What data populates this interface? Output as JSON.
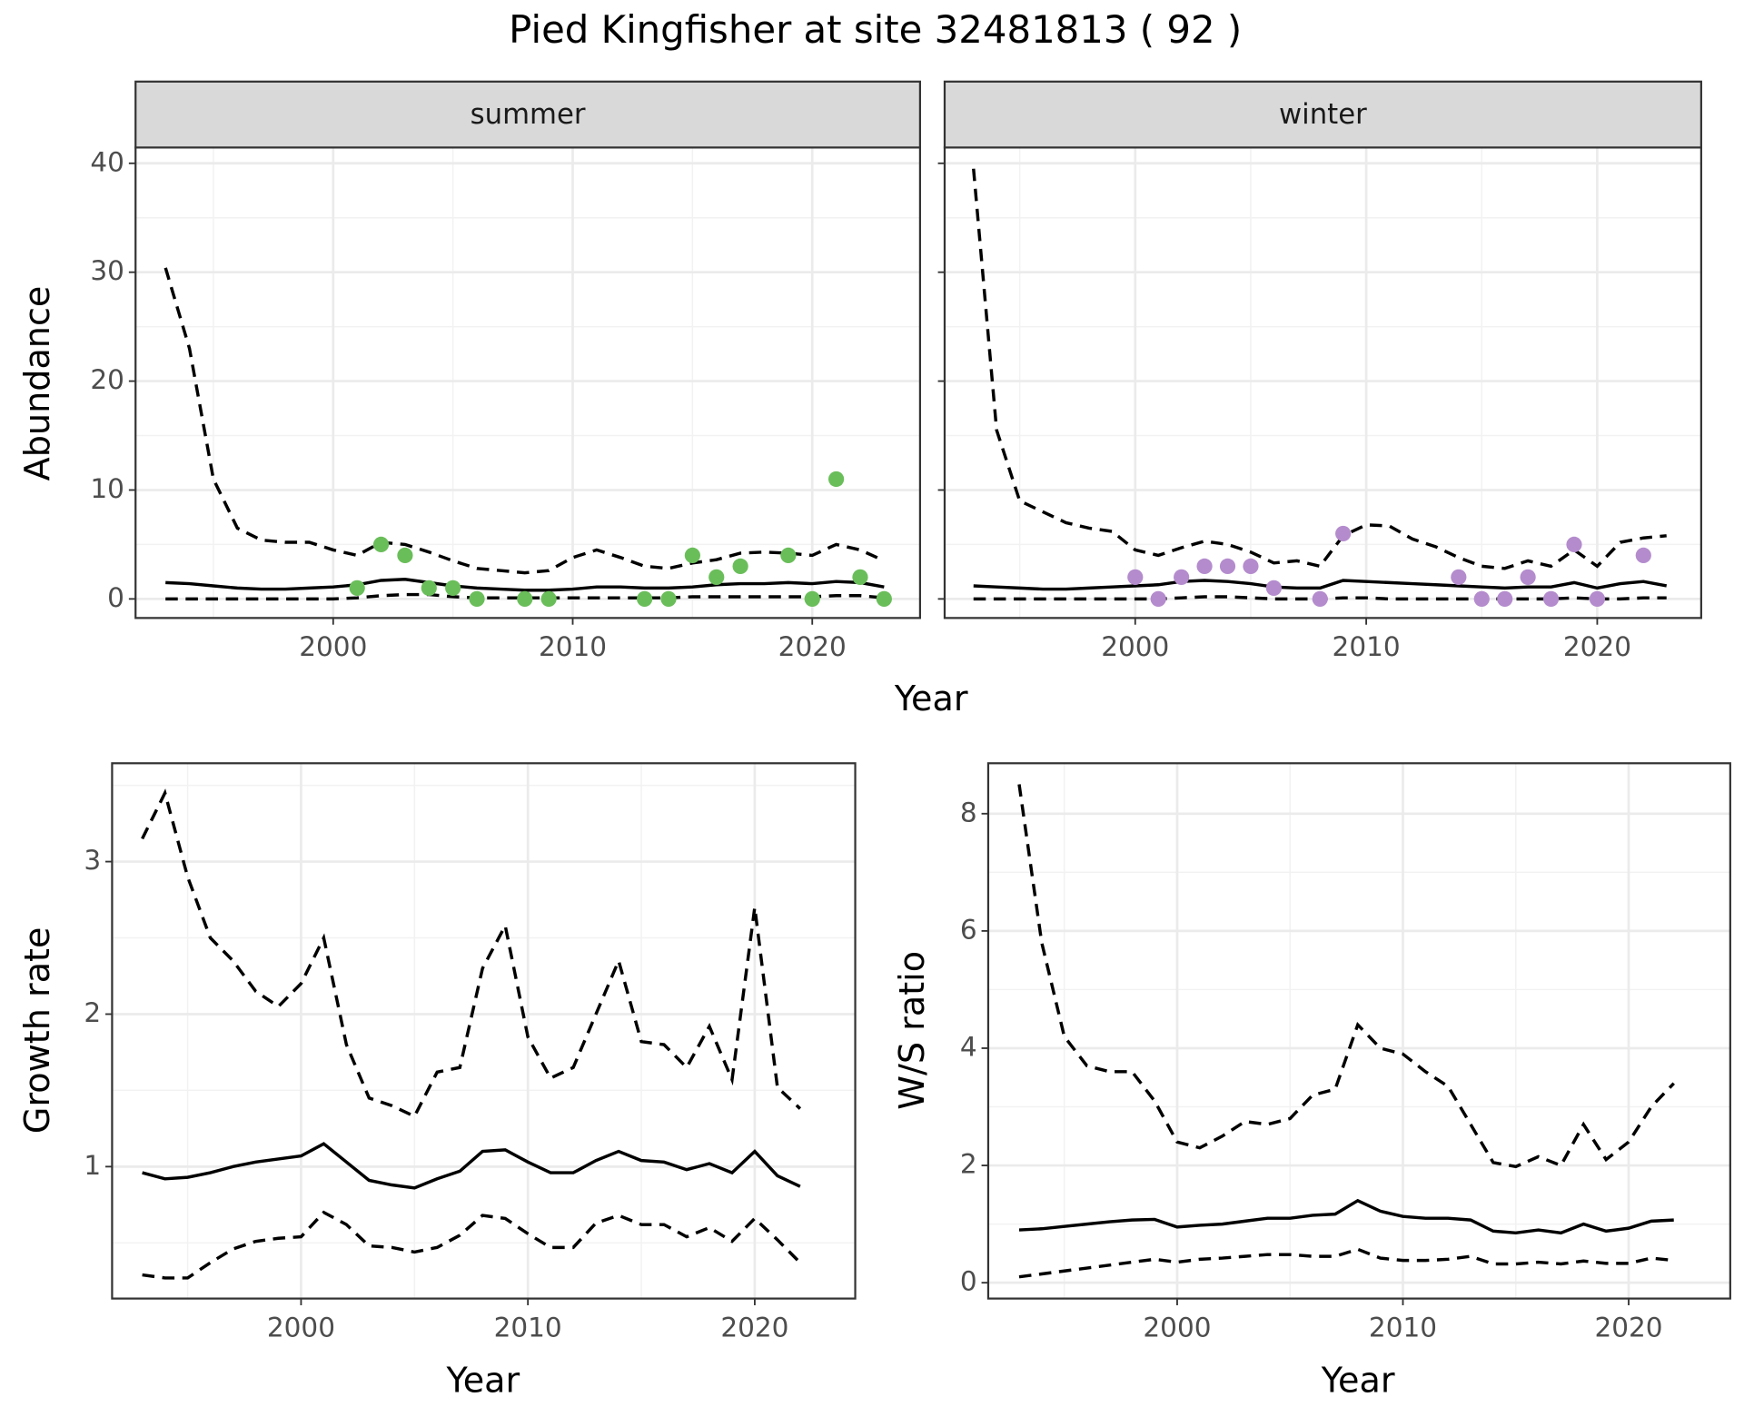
{
  "title": "Pied Kingfisher at site 32481813 ( 92 )",
  "chart_data": [
    {
      "type": "line",
      "strip": "summer",
      "ylabel": "Abundance",
      "xlabel": "Year",
      "xlim": [
        1991.75,
        2024.5
      ],
      "ylim": [
        -1.75,
        41.45
      ],
      "xticks": [
        2000,
        2010,
        2020
      ],
      "yticks": [
        0,
        10,
        20,
        30,
        40
      ],
      "grid": true,
      "x": [
        1993,
        1994,
        1995,
        1996,
        1997,
        1998,
        1999,
        2000,
        2001,
        2002,
        2003,
        2004,
        2005,
        2006,
        2007,
        2008,
        2009,
        2010,
        2011,
        2012,
        2013,
        2014,
        2015,
        2016,
        2017,
        2018,
        2019,
        2020,
        2021,
        2022,
        2023
      ],
      "series": [
        {
          "color": "#000000",
          "dash": false,
          "values": [
            1.5,
            1.4,
            1.2,
            1.0,
            0.9,
            0.9,
            1.0,
            1.1,
            1.3,
            1.7,
            1.8,
            1.5,
            1.2,
            1.0,
            0.9,
            0.8,
            0.8,
            0.9,
            1.1,
            1.1,
            1.0,
            1.0,
            1.1,
            1.3,
            1.4,
            1.4,
            1.5,
            1.4,
            1.6,
            1.5,
            1.1
          ]
        },
        {
          "color": "#000000",
          "dash": true,
          "values": [
            30.4,
            23,
            11,
            6.5,
            5.4,
            5.2,
            5.2,
            4.5,
            4.0,
            5.2,
            5.0,
            4.3,
            3.5,
            2.8,
            2.6,
            2.4,
            2.6,
            3.8,
            4.5,
            3.8,
            3.0,
            2.8,
            3.3,
            3.6,
            4.2,
            4.3,
            4.2,
            4.0,
            5.0,
            4.5,
            3.5
          ]
        },
        {
          "color": "#000000",
          "dash": true,
          "values": [
            0,
            0,
            0,
            0,
            0,
            0,
            0,
            0,
            0.1,
            0.3,
            0.4,
            0.4,
            0.2,
            0.1,
            0.1,
            0.1,
            0.1,
            0.1,
            0.1,
            0.1,
            0.1,
            0.1,
            0.2,
            0.2,
            0.2,
            0.2,
            0.2,
            0.2,
            0.3,
            0.3,
            0.1
          ]
        }
      ],
      "points": {
        "color": "#6abe5a",
        "x": [
          2001,
          2002,
          2003,
          2004,
          2005,
          2006,
          2008,
          2009,
          2013,
          2014,
          2015,
          2016,
          2017,
          2019,
          2020,
          2021,
          2022,
          2023
        ],
        "values": [
          1,
          5,
          4,
          1,
          1,
          0,
          0,
          0,
          0,
          0,
          4,
          2,
          3,
          4,
          0,
          11,
          2,
          0
        ]
      }
    },
    {
      "type": "line",
      "strip": "winter",
      "xlim": [
        1991.75,
        2024.5
      ],
      "ylim": [
        -1.75,
        41.45
      ],
      "xticks": [
        2000,
        2010,
        2020
      ],
      "yticks": [
        0,
        10,
        20,
        30,
        40
      ],
      "grid": true,
      "x": [
        1993,
        1994,
        1995,
        1996,
        1997,
        1998,
        1999,
        2000,
        2001,
        2002,
        2003,
        2004,
        2005,
        2006,
        2007,
        2008,
        2009,
        2010,
        2011,
        2012,
        2013,
        2014,
        2015,
        2016,
        2017,
        2018,
        2019,
        2020,
        2021,
        2022,
        2023
      ],
      "series": [
        {
          "color": "#000000",
          "dash": false,
          "values": [
            1.2,
            1.1,
            1.0,
            0.9,
            0.9,
            1.0,
            1.1,
            1.2,
            1.3,
            1.6,
            1.7,
            1.6,
            1.4,
            1.1,
            1.0,
            1.0,
            1.7,
            1.6,
            1.5,
            1.4,
            1.3,
            1.2,
            1.1,
            1.0,
            1.1,
            1.1,
            1.5,
            1.0,
            1.4,
            1.6,
            1.2
          ]
        },
        {
          "color": "#000000",
          "dash": true,
          "values": [
            39.5,
            15.5,
            9,
            8,
            7,
            6.5,
            6.2,
            4.5,
            4.0,
            4.7,
            5.3,
            5.0,
            4.3,
            3.3,
            3.5,
            3.0,
            5.8,
            6.8,
            6.7,
            5.5,
            4.8,
            3.8,
            3.0,
            2.8,
            3.5,
            3.0,
            4.5,
            3.0,
            5.2,
            5.6,
            5.8
          ]
        },
        {
          "color": "#000000",
          "dash": true,
          "values": [
            0,
            0,
            0,
            0,
            0,
            0,
            0,
            0,
            0,
            0.1,
            0.2,
            0.2,
            0.1,
            0,
            0,
            0,
            0.1,
            0.1,
            0,
            0,
            0,
            0,
            0,
            0,
            0,
            0,
            0.1,
            0,
            0,
            0.1,
            0.1
          ]
        }
      ],
      "points": {
        "color": "#b48ccd",
        "x": [
          2000,
          2001,
          2002,
          2003,
          2004,
          2005,
          2006,
          2008,
          2009,
          2014,
          2015,
          2016,
          2017,
          2018,
          2019,
          2020,
          2022
        ],
        "values": [
          2,
          0,
          2,
          3,
          3,
          3,
          1,
          0,
          6,
          2,
          0,
          0,
          2,
          0,
          5,
          0,
          4
        ]
      }
    },
    {
      "type": "line",
      "ylabel": "Growth rate",
      "xlabel": "Year",
      "xlim": [
        1991.67,
        2024.43
      ],
      "ylim": [
        0.135,
        3.645
      ],
      "xticks": [
        2000,
        2010,
        2020
      ],
      "yticks": [
        1,
        2,
        3
      ],
      "grid": true,
      "x": [
        1993,
        1994,
        1995,
        1996,
        1997,
        1998,
        1999,
        2000,
        2001,
        2002,
        2003,
        2004,
        2005,
        2006,
        2007,
        2008,
        2009,
        2010,
        2011,
        2012,
        2013,
        2014,
        2015,
        2016,
        2017,
        2018,
        2019,
        2020,
        2021,
        2022
      ],
      "series": [
        {
          "color": "#000000",
          "dash": false,
          "values": [
            0.96,
            0.92,
            0.93,
            0.96,
            1.0,
            1.03,
            1.05,
            1.07,
            1.15,
            1.03,
            0.91,
            0.88,
            0.86,
            0.92,
            0.97,
            1.1,
            1.11,
            1.03,
            0.96,
            0.96,
            1.04,
            1.1,
            1.04,
            1.03,
            0.98,
            1.02,
            0.96,
            1.1,
            0.94,
            0.87
          ]
        },
        {
          "color": "#000000",
          "dash": true,
          "values": [
            3.15,
            3.45,
            2.9,
            2.5,
            2.35,
            2.15,
            2.05,
            2.2,
            2.5,
            1.8,
            1.45,
            1.4,
            1.33,
            1.62,
            1.65,
            2.3,
            2.58,
            1.85,
            1.58,
            1.65,
            2.0,
            2.35,
            1.82,
            1.8,
            1.65,
            1.92,
            1.57,
            2.7,
            1.52,
            1.38
          ]
        },
        {
          "color": "#000000",
          "dash": true,
          "values": [
            0.29,
            0.27,
            0.27,
            0.37,
            0.46,
            0.51,
            0.53,
            0.54,
            0.7,
            0.62,
            0.48,
            0.47,
            0.44,
            0.47,
            0.55,
            0.68,
            0.66,
            0.56,
            0.47,
            0.47,
            0.63,
            0.68,
            0.62,
            0.62,
            0.54,
            0.6,
            0.51,
            0.66,
            0.52,
            0.37
          ]
        }
      ]
    },
    {
      "type": "line",
      "ylabel": "W/S ratio",
      "xlabel": "Year",
      "xlim": [
        1991.63,
        2024.5
      ],
      "ylim": [
        -0.27,
        8.86
      ],
      "xticks": [
        2000,
        2010,
        2020
      ],
      "yticks": [
        0,
        2,
        4,
        6,
        8
      ],
      "grid": true,
      "x": [
        1993,
        1994,
        1995,
        1996,
        1997,
        1998,
        1999,
        2000,
        2001,
        2002,
        2003,
        2004,
        2005,
        2006,
        2007,
        2008,
        2009,
        2010,
        2011,
        2012,
        2013,
        2014,
        2015,
        2016,
        2017,
        2018,
        2019,
        2020,
        2021,
        2022
      ],
      "series": [
        {
          "color": "#000000",
          "dash": false,
          "values": [
            0.9,
            0.92,
            0.96,
            1.0,
            1.04,
            1.07,
            1.08,
            0.95,
            0.98,
            1.0,
            1.05,
            1.1,
            1.1,
            1.15,
            1.17,
            1.4,
            1.22,
            1.13,
            1.1,
            1.1,
            1.07,
            0.88,
            0.85,
            0.9,
            0.85,
            1.0,
            0.88,
            0.93,
            1.05,
            1.07
          ]
        },
        {
          "color": "#000000",
          "dash": true,
          "values": [
            8.5,
            5.8,
            4.2,
            3.7,
            3.6,
            3.6,
            3.1,
            2.4,
            2.3,
            2.5,
            2.75,
            2.7,
            2.8,
            3.2,
            3.3,
            4.4,
            4.0,
            3.9,
            3.6,
            3.35,
            2.7,
            2.05,
            1.98,
            2.15,
            2.0,
            2.7,
            2.1,
            2.4,
            3.0,
            3.4
          ]
        },
        {
          "color": "#000000",
          "dash": true,
          "values": [
            0.1,
            0.15,
            0.2,
            0.25,
            0.3,
            0.35,
            0.4,
            0.35,
            0.4,
            0.42,
            0.45,
            0.48,
            0.48,
            0.45,
            0.45,
            0.57,
            0.42,
            0.38,
            0.38,
            0.4,
            0.45,
            0.32,
            0.32,
            0.35,
            0.32,
            0.37,
            0.33,
            0.33,
            0.42,
            0.38
          ]
        }
      ]
    }
  ]
}
